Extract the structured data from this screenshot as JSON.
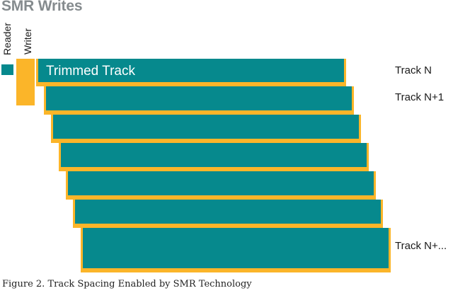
{
  "title": "SMR Writes",
  "labels": {
    "reader": "Reader",
    "writer": "Writer",
    "trimmed_track": "Trimmed Track",
    "track_n": "Track N",
    "track_n1": "Track N+1",
    "track_nx": "Track N+..."
  },
  "caption": "Figure 2. Track Spacing Enabled by SMR Technology",
  "colors": {
    "track": "#06898d",
    "overlap": "#fbb529",
    "title": "#858b8e"
  }
}
